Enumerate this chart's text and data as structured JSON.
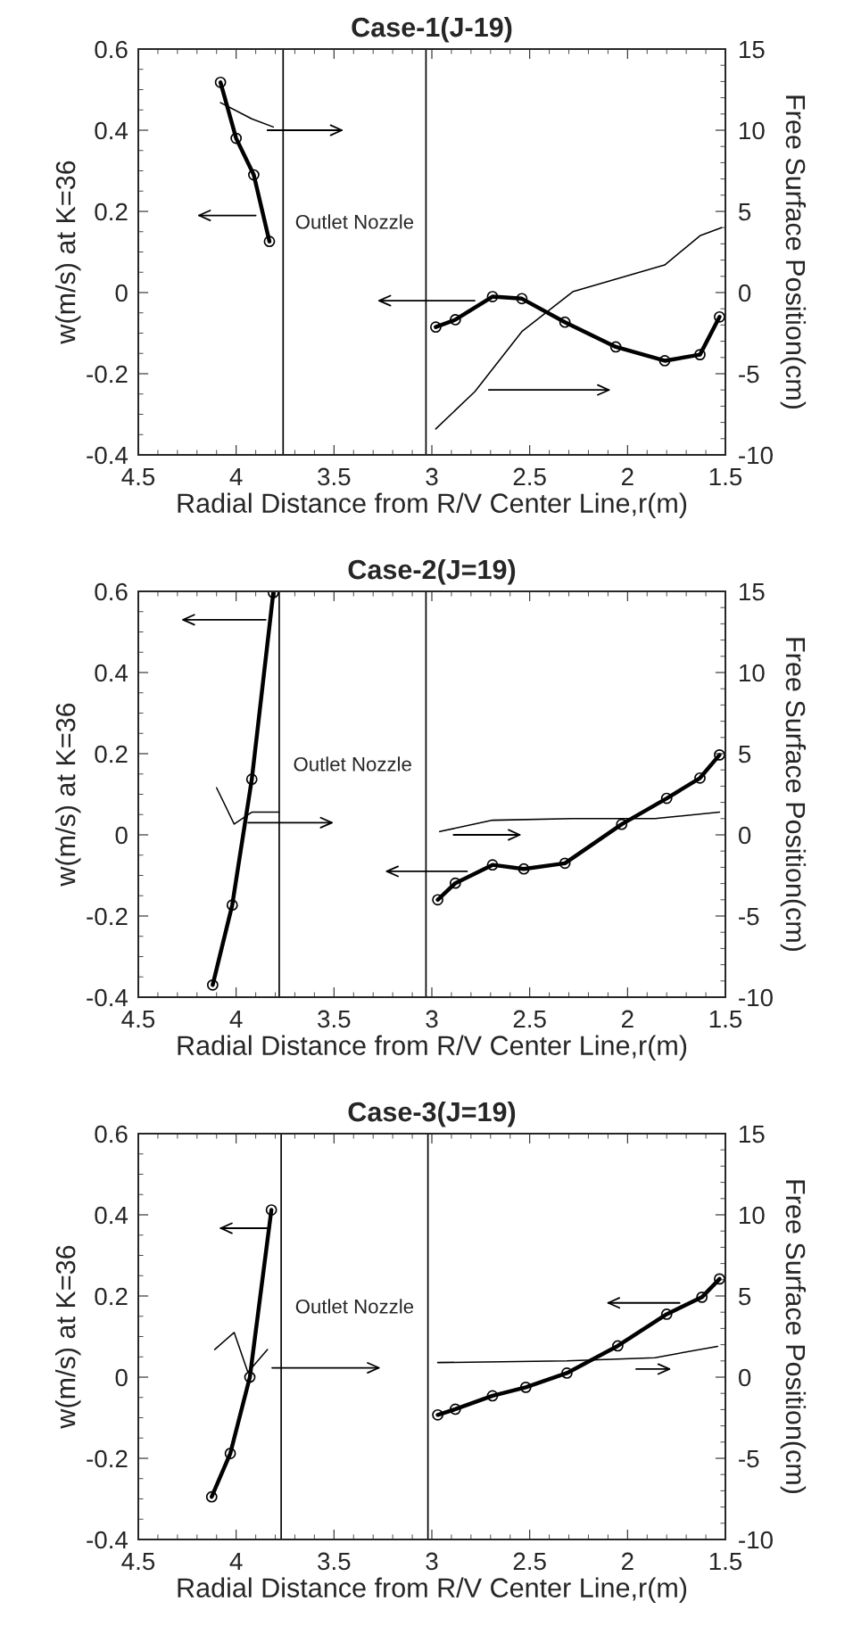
{
  "chart_data": [
    {
      "type": "line",
      "title": "Case-1(J-19)",
      "xlabel": "Radial Distance from R/V Center Line,r(m)",
      "ylabel": "w(m/s) at K=36",
      "y2label": "Free Surface Position(cm)",
      "xlim": [
        4.5,
        1.5
      ],
      "xticks": [
        4.5,
        4,
        3.5,
        3,
        2.5,
        2,
        1.5
      ],
      "ylim": [
        -0.4,
        0.6
      ],
      "yticks": [
        -0.4,
        -0.2,
        0,
        0.2,
        0.4,
        0.6
      ],
      "y2lim": [
        -10,
        15
      ],
      "y2ticks": [
        -10,
        -5,
        0,
        5,
        10,
        15
      ],
      "grid": false,
      "series": [
        {
          "color": "#000000",
          "marker": "circle",
          "x": [
            4.08,
            4.0,
            3.91,
            3.83
          ],
          "values": [
            0.518,
            0.38,
            0.29,
            0.126
          ]
        },
        {
          "color": "#000000",
          "marker": "circle",
          "x": [
            2.98,
            2.88,
            2.69,
            2.54,
            2.32,
            2.06,
            1.81,
            1.63,
            1.53
          ],
          "values": [
            -0.085,
            -0.067,
            -0.01,
            -0.015,
            -0.073,
            -0.134,
            -0.168,
            -0.153,
            -0.06
          ]
        },
        {
          "color": "#000000",
          "marker": "none",
          "axis": "y2",
          "x": [
            4.08,
            3.92,
            3.81
          ],
          "values": [
            11.7,
            10.7,
            10.2
          ]
        },
        {
          "color": "#000000",
          "marker": "none",
          "axis": "y2",
          "x": [
            2.98,
            2.78,
            2.54,
            2.28,
            1.81,
            1.63,
            1.52
          ],
          "values": [
            -8.4,
            -6.1,
            -2.4,
            0.05,
            1.7,
            3.5,
            4.0
          ]
        }
      ],
      "ref_lines": [
        {
          "axis": "x",
          "value": 3.76
        },
        {
          "axis": "x",
          "value": 3.03
        }
      ],
      "annotations": [
        "Outlet Nozzle"
      ]
    },
    {
      "type": "line",
      "title": "Case-2(J=19)",
      "xlabel": "Radial Distance from R/V Center Line,r(m)",
      "ylabel": "w(m/s) at K=36",
      "y2label": "Free Surface Position(cm)",
      "xlim": [
        4.5,
        1.5
      ],
      "xticks": [
        4.5,
        4,
        3.5,
        3,
        2.5,
        2,
        1.5
      ],
      "ylim": [
        -0.4,
        0.6
      ],
      "yticks": [
        -0.4,
        -0.2,
        0,
        0.2,
        0.4,
        0.6
      ],
      "y2lim": [
        -10,
        15
      ],
      "y2ticks": [
        -10,
        -5,
        0,
        5,
        10,
        15
      ],
      "grid": false,
      "series": [
        {
          "color": "#000000",
          "marker": "circle",
          "x": [
            4.12,
            4.02,
            3.92,
            3.81
          ],
          "values": [
            -0.37,
            -0.173,
            0.137,
            0.597
          ]
        },
        {
          "color": "#000000",
          "marker": "circle",
          "x": [
            2.97,
            2.88,
            2.69,
            2.53,
            2.32,
            2.03,
            1.8,
            1.63,
            1.53
          ],
          "values": [
            -0.16,
            -0.119,
            -0.074,
            -0.084,
            -0.07,
            0.026,
            0.09,
            0.14,
            0.197
          ]
        },
        {
          "color": "#000000",
          "marker": "none",
          "axis": "y2",
          "x": [
            4.1,
            4.01,
            3.92,
            3.78
          ],
          "values": [
            2.9,
            0.66,
            1.4,
            1.4
          ]
        },
        {
          "color": "#000000",
          "marker": "none",
          "axis": "y2",
          "x": [
            2.96,
            2.69,
            2.28,
            1.86,
            1.53
          ],
          "values": [
            0.2,
            0.9,
            1.0,
            1.0,
            1.4
          ]
        }
      ],
      "ref_lines": [
        {
          "axis": "x",
          "value": 3.78
        },
        {
          "axis": "x",
          "value": 3.03
        }
      ],
      "annotations": [
        "Outlet Nozzle"
      ]
    },
    {
      "type": "line",
      "title": "Case-3(J=19)",
      "xlabel": "Radial Distance from R/V Center Line,r(m)",
      "ylabel": "w(m/s) at K=36",
      "y2label": "Free Surface Position(cm)",
      "xlim": [
        4.5,
        1.5
      ],
      "xticks": [
        4.5,
        4,
        3.5,
        3,
        2.5,
        2,
        1.5
      ],
      "ylim": [
        -0.4,
        0.6
      ],
      "yticks": [
        -0.4,
        -0.2,
        0,
        0.2,
        0.4,
        0.6
      ],
      "y2lim": [
        -10,
        15
      ],
      "y2ticks": [
        -10,
        -5,
        0,
        5,
        10,
        15
      ],
      "grid": false,
      "series": [
        {
          "color": "#000000",
          "marker": "circle",
          "x": [
            4.125,
            4.03,
            3.93,
            3.82
          ],
          "values": [
            -0.295,
            -0.188,
            0.0,
            0.412
          ]
        },
        {
          "color": "#000000",
          "marker": "circle",
          "x": [
            2.97,
            2.88,
            2.69,
            2.52,
            2.31,
            2.05,
            1.8,
            1.62,
            1.53
          ],
          "values": [
            -0.093,
            -0.079,
            -0.046,
            -0.025,
            0.01,
            0.077,
            0.155,
            0.197,
            0.242
          ]
        },
        {
          "color": "#000000",
          "marker": "none",
          "axis": "y2",
          "x": [
            4.11,
            4.01,
            3.94,
            3.84
          ],
          "values": [
            1.7,
            2.75,
            0.3,
            1.7
          ]
        },
        {
          "color": "#000000",
          "marker": "none",
          "axis": "y2",
          "x": [
            2.97,
            2.31,
            1.86,
            1.54
          ],
          "values": [
            0.9,
            1.0,
            1.2,
            1.9
          ]
        }
      ],
      "ref_lines": [
        {
          "axis": "x",
          "value": 3.77
        },
        {
          "axis": "x",
          "value": 3.02
        }
      ],
      "annotations": [
        "Outlet Nozzle"
      ]
    }
  ]
}
